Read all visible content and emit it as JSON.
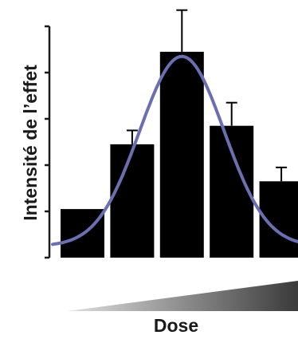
{
  "chart_data": {
    "type": "bar",
    "title": "",
    "ylabel": "Intensité de l’effet",
    "xlabel": "Dose",
    "ylim": [
      0,
      5
    ],
    "yticks": [
      0,
      1,
      2,
      3,
      4,
      5
    ],
    "grid": false,
    "legend": "none",
    "x": [
      1,
      2,
      3,
      4,
      5
    ],
    "values": [
      1.05,
      2.45,
      4.45,
      2.85,
      1.65
    ],
    "errors": [
      0,
      0.3,
      0.9,
      0.5,
      0.3
    ],
    "fit_curve": {
      "type": "line",
      "shape": "gaussian",
      "peak_x": 3.0,
      "peak_y": 4.35,
      "baseline": 0.25,
      "width": 0.85,
      "x_range": [
        0.4,
        5.5
      ]
    },
    "dose_indicator": "increasing-wedge",
    "colors": {
      "bars": "#000000",
      "curve": "#6b6fb0",
      "axis": "#1a1a1a",
      "wedge_start": "#e0e0e0",
      "wedge_end": "#3a3a3a"
    }
  }
}
